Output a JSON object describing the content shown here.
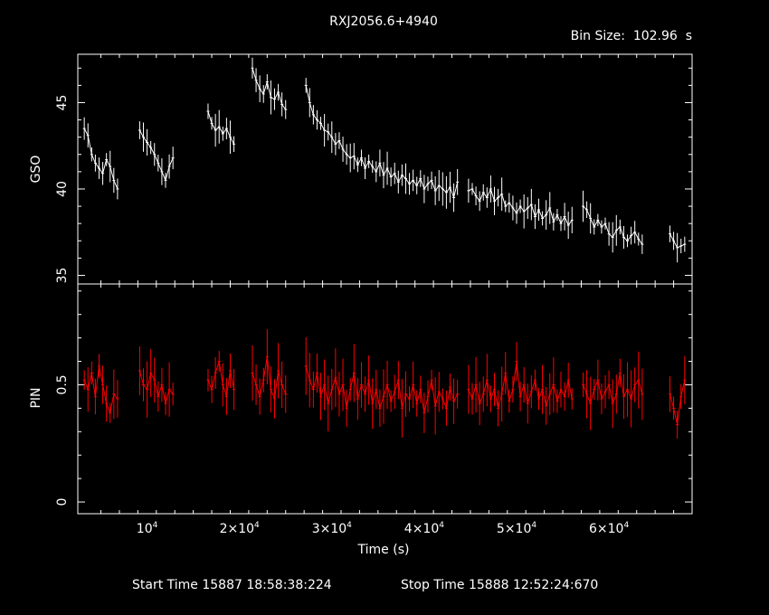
{
  "chart_data": [
    {
      "type": "line",
      "panel": "top",
      "title": "RXJ2056.6+4940",
      "subtitle": "Bin Size:  102.96  s",
      "xlabel": "Time (s)",
      "ylabel": "GSO",
      "xlim": [
        2500,
        69000
      ],
      "ylim": [
        34.5,
        47.8
      ],
      "yticks": [
        35,
        40,
        45
      ],
      "ytick_labels": [
        "35",
        "40",
        "45"
      ],
      "color": "#ffffff",
      "series": [
        {
          "x": [
            3200,
            3600,
            4000,
            4400,
            4800,
            5200,
            5600,
            6000,
            6400,
            6800,
            9200,
            9600,
            10000,
            10400,
            10800,
            11200,
            11600,
            12000,
            12400,
            12800,
            16600,
            17000,
            17400,
            17800,
            18200,
            18600,
            19000,
            19400,
            21400,
            21800,
            22200,
            22600,
            23000,
            23400,
            23800,
            24200,
            24600,
            25000,
            27200,
            27600,
            28000,
            28400,
            28800,
            29200,
            29600,
            30000,
            30400,
            30800,
            31200,
            31600,
            32000,
            32400,
            32800,
            33200,
            33600,
            34000,
            34400,
            34800,
            35200,
            35600,
            36000,
            36400,
            36800,
            37200,
            37600,
            38000,
            38400,
            38800,
            39200,
            39600,
            40000,
            40400,
            40800,
            41200,
            41600,
            42000,
            42400,
            42800,
            43200,
            43600,
            44800,
            45200,
            45600,
            46000,
            46400,
            46800,
            47200,
            47600,
            48000,
            48400,
            48800,
            49200,
            49600,
            50000,
            50400,
            50800,
            51200,
            51600,
            52000,
            52400,
            52800,
            53200,
            53600,
            54000,
            54400,
            54800,
            55200,
            55600,
            56000,
            57200,
            57600,
            58000,
            58400,
            58800,
            59200,
            59600,
            60000,
            60400,
            60800,
            61200,
            61600,
            62000,
            62400,
            62800,
            63200,
            63600,
            66600,
            67000,
            67400,
            67800,
            68200
          ],
          "y": [
            43.5,
            43.1,
            42.0,
            41.5,
            41.2,
            40.9,
            41.7,
            41.3,
            40.5,
            40.0,
            43.4,
            43.0,
            42.7,
            42.4,
            42.0,
            41.5,
            41.0,
            40.5,
            41.3,
            41.8,
            44.5,
            43.8,
            43.4,
            43.6,
            43.2,
            43.5,
            43.0,
            42.6,
            47.0,
            46.3,
            45.8,
            45.5,
            46.2,
            45.3,
            45.2,
            45.6,
            44.9,
            44.6,
            46.0,
            45.0,
            44.3,
            44.0,
            43.8,
            43.4,
            43.3,
            43.0,
            42.6,
            42.8,
            42.3,
            42.0,
            41.8,
            41.9,
            41.4,
            41.8,
            41.2,
            41.6,
            41.3,
            41.0,
            41.5,
            40.8,
            41.2,
            40.7,
            40.9,
            40.4,
            40.8,
            40.6,
            40.3,
            40.5,
            40.2,
            40.6,
            40.0,
            40.3,
            40.5,
            39.9,
            40.2,
            40.0,
            39.8,
            40.1,
            39.5,
            40.4,
            39.9,
            40.0,
            39.6,
            39.3,
            39.8,
            39.5,
            40.0,
            39.3,
            39.5,
            39.7,
            39.0,
            39.2,
            38.9,
            38.6,
            39.0,
            38.7,
            38.9,
            39.1,
            38.4,
            38.8,
            38.3,
            38.5,
            38.9,
            38.1,
            38.5,
            38.0,
            38.4,
            37.9,
            38.2,
            39.0,
            38.8,
            38.3,
            37.8,
            38.2,
            37.8,
            38.0,
            37.4,
            37.2,
            37.6,
            37.8,
            37.2,
            37.0,
            37.3,
            37.5,
            37.1,
            36.8,
            37.4,
            37.0,
            36.6,
            36.7,
            36.8
          ]
        }
      ]
    },
    {
      "type": "line",
      "panel": "bottom",
      "xlabel": "Time (s)",
      "ylabel": "PIN",
      "xlim": [
        2500,
        69000
      ],
      "ylim": [
        -0.05,
        0.93
      ],
      "yticks": [
        0,
        0.5
      ],
      "ytick_labels": [
        "0",
        "0.5"
      ],
      "xticks": [
        10000,
        20000,
        30000,
        40000,
        50000,
        60000
      ],
      "xtick_labels": [
        {
          "base": "10",
          "exp": "4"
        },
        {
          "base": "2×10",
          "exp": "4"
        },
        {
          "base": "3×10",
          "exp": "4"
        },
        {
          "base": "4×10",
          "exp": "4"
        },
        {
          "base": "5×10",
          "exp": "4"
        },
        {
          "base": "6×10",
          "exp": "4"
        }
      ],
      "color": "#ff0000",
      "series": [
        {
          "x": [
            3200,
            3600,
            4000,
            4400,
            4800,
            5200,
            5600,
            6000,
            6400,
            6800,
            9200,
            9600,
            10000,
            10400,
            10800,
            11200,
            11600,
            12000,
            12400,
            12800,
            16600,
            17000,
            17400,
            17800,
            18200,
            18600,
            19000,
            19400,
            21400,
            21800,
            22200,
            22600,
            23000,
            23400,
            23800,
            24200,
            24600,
            25000,
            27200,
            27600,
            28000,
            28400,
            28800,
            29200,
            29600,
            30000,
            30400,
            30800,
            31200,
            31600,
            32000,
            32400,
            32800,
            33200,
            33600,
            34000,
            34400,
            34800,
            35200,
            35600,
            36000,
            36400,
            36800,
            37200,
            37600,
            38000,
            38400,
            38800,
            39200,
            39600,
            40000,
            40400,
            40800,
            41200,
            41600,
            42000,
            42400,
            42800,
            43200,
            43600,
            44800,
            45200,
            45600,
            46000,
            46400,
            46800,
            47200,
            47600,
            48000,
            48400,
            48800,
            49200,
            49600,
            50000,
            50400,
            50800,
            51200,
            51600,
            52000,
            52400,
            52800,
            53200,
            53600,
            54000,
            54400,
            54800,
            55200,
            55600,
            56000,
            57200,
            57600,
            58000,
            58400,
            58800,
            59200,
            59600,
            60000,
            60400,
            60800,
            61200,
            61600,
            62000,
            62400,
            62800,
            63200,
            63600,
            66600,
            67000,
            67400,
            67800,
            68200
          ],
          "y": [
            0.52,
            0.48,
            0.55,
            0.45,
            0.58,
            0.5,
            0.42,
            0.38,
            0.46,
            0.44,
            0.56,
            0.5,
            0.48,
            0.55,
            0.52,
            0.45,
            0.5,
            0.42,
            0.48,
            0.46,
            0.52,
            0.48,
            0.55,
            0.6,
            0.5,
            0.45,
            0.56,
            0.48,
            0.55,
            0.5,
            0.45,
            0.52,
            0.62,
            0.48,
            0.44,
            0.56,
            0.5,
            0.46,
            0.58,
            0.52,
            0.48,
            0.55,
            0.45,
            0.5,
            0.42,
            0.48,
            0.53,
            0.46,
            0.5,
            0.4,
            0.48,
            0.55,
            0.44,
            0.5,
            0.46,
            0.52,
            0.42,
            0.48,
            0.4,
            0.45,
            0.5,
            0.43,
            0.47,
            0.52,
            0.4,
            0.46,
            0.44,
            0.5,
            0.42,
            0.48,
            0.38,
            0.45,
            0.52,
            0.41,
            0.47,
            0.44,
            0.4,
            0.49,
            0.43,
            0.46,
            0.48,
            0.44,
            0.5,
            0.42,
            0.46,
            0.52,
            0.44,
            0.48,
            0.4,
            0.46,
            0.55,
            0.43,
            0.48,
            0.6,
            0.45,
            0.5,
            0.42,
            0.47,
            0.52,
            0.44,
            0.48,
            0.41,
            0.46,
            0.5,
            0.43,
            0.48,
            0.45,
            0.52,
            0.44,
            0.5,
            0.46,
            0.42,
            0.48,
            0.52,
            0.44,
            0.47,
            0.5,
            0.42,
            0.46,
            0.55,
            0.45,
            0.48,
            0.44,
            0.5,
            0.52,
            0.46,
            0.46,
            0.4,
            0.33,
            0.45,
            0.52
          ]
        }
      ]
    }
  ],
  "footer": {
    "start_time": "Start Time 15887 18:58:38:224",
    "stop_time": "Stop Time 15888 12:52:24:670"
  }
}
